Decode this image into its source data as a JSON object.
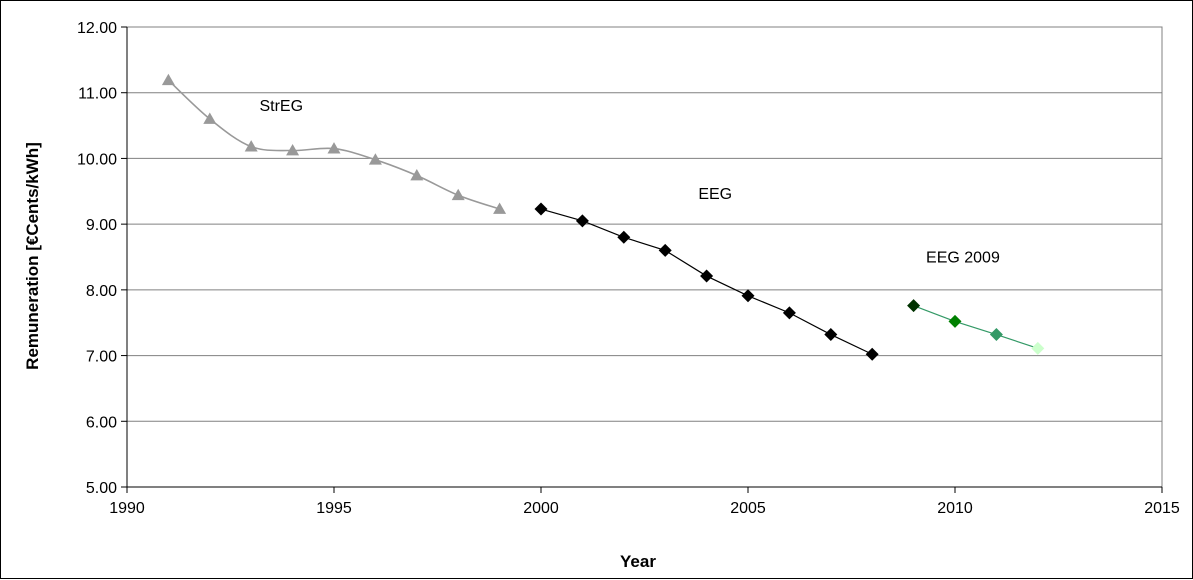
{
  "chart_data": {
    "type": "line",
    "xlabel": "Year",
    "ylabel": "Remuneration [€Cents/kWh]",
    "xlim": [
      1990,
      2015
    ],
    "ylim": [
      5.0,
      12.0
    ],
    "x_ticks": [
      "1990",
      "1995",
      "2000",
      "2005",
      "2010",
      "2015"
    ],
    "y_ticks": [
      "5.00",
      "6.00",
      "7.00",
      "8.00",
      "9.00",
      "10.00",
      "11.00",
      "12.00"
    ],
    "grid": "horizontal",
    "series": [
      {
        "marker": "triangle",
        "color": "#999999",
        "smooth": true,
        "x": [
          1991,
          1992,
          1993,
          1994,
          1995,
          1996,
          1997,
          1998,
          1999
        ],
        "y": [
          11.19,
          10.6,
          10.18,
          10.12,
          10.15,
          9.98,
          9.74,
          9.44,
          9.23
        ]
      },
      {
        "marker": "diamond",
        "color": "#000000",
        "x": [
          2000,
          2001,
          2002,
          2003,
          2004,
          2005,
          2006,
          2007,
          2008
        ],
        "y": [
          9.23,
          9.05,
          8.8,
          8.6,
          8.21,
          7.91,
          7.65,
          7.32,
          7.02
        ]
      },
      {
        "marker": "diamond",
        "color": "#339966",
        "point_colors": [
          "#003300",
          "#008000",
          "#339966",
          "#CCFFCC"
        ],
        "x": [
          2009,
          2010,
          2011,
          2012
        ],
        "y": [
          7.76,
          7.52,
          7.32,
          7.11
        ]
      }
    ],
    "annotations": [
      {
        "text": "StrEG",
        "x": 1993.2,
        "y": 10.72
      },
      {
        "text": "EEG",
        "x": 2003.8,
        "y": 9.38
      },
      {
        "text": "EEG 2009",
        "x": 2009.3,
        "y": 8.42
      }
    ]
  }
}
